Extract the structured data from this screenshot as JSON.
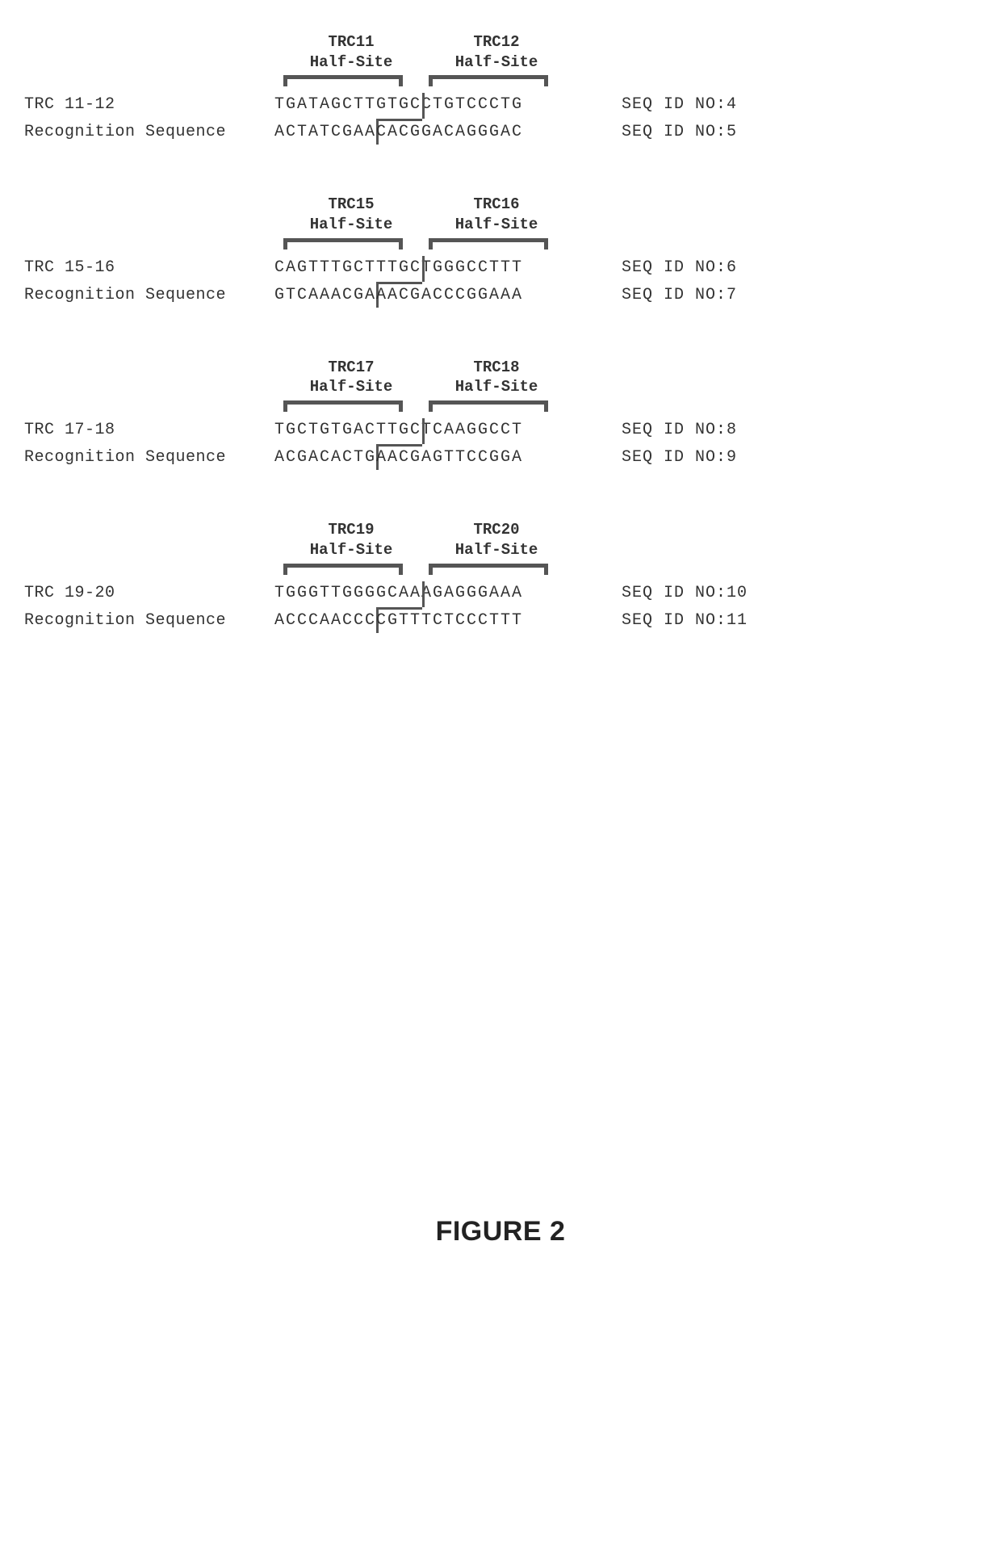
{
  "figure_caption": "FIGURE 2",
  "font": {
    "mono": "Courier New",
    "caption": "Arial",
    "seq_fontsize": 20,
    "label_fontsize": 19
  },
  "colors": {
    "text": "#333333",
    "bracket": "#555555",
    "background": "#ffffff"
  },
  "blocks": [
    {
      "halfsite_left_name": "TRC11",
      "halfsite_right_name": "TRC12",
      "halfsite_word": "Half-Site",
      "name_label": "TRC 11-12",
      "recog_label": "Recognition Sequence",
      "seq_top": "TGATAGCTTGTGCCTGTCCCTG",
      "seq_bot": "ACTATCGAACACGGACAGGGAC",
      "seqid_top": "SEQ ID NO:4",
      "seqid_bot": "SEQ ID NO:5",
      "cut_top_after": 13,
      "cut_bot_after": 9
    },
    {
      "halfsite_left_name": "TRC15",
      "halfsite_right_name": "TRC16",
      "halfsite_word": "Half-Site",
      "name_label": "TRC 15-16",
      "recog_label": "Recognition Sequence",
      "seq_top": "CAGTTTGCTTTGCTGGGCCTTT",
      "seq_bot": "GTCAAACGAAACGACCCGGAAA",
      "seqid_top": "SEQ ID NO:6",
      "seqid_bot": "SEQ ID NO:7",
      "cut_top_after": 13,
      "cut_bot_after": 9
    },
    {
      "halfsite_left_name": "TRC17",
      "halfsite_right_name": "TRC18",
      "halfsite_word": "Half-Site",
      "name_label": "TRC 17-18",
      "recog_label": "Recognition Sequence",
      "seq_top": "TGCTGTGACTTGCTCAAGGCCT",
      "seq_bot": "ACGACACTGAACGAGTTCCGGA",
      "seqid_top": "SEQ ID NO:8",
      "seqid_bot": "SEQ ID NO:9",
      "cut_top_after": 13,
      "cut_bot_after": 9
    },
    {
      "halfsite_left_name": "TRC19",
      "halfsite_right_name": "TRC20",
      "halfsite_word": "Half-Site",
      "name_label": "TRC 19-20",
      "recog_label": "Recognition Sequence",
      "seq_top": "TGGGTTGGGGCAAAGAGGGAAA",
      "seq_bot": "ACCCAACCCCGTTTCTCCCTTT",
      "seqid_top": "SEQ ID NO:10",
      "seqid_bot": "SEQ ID NO:11",
      "cut_top_after": 13,
      "cut_bot_after": 9
    }
  ]
}
